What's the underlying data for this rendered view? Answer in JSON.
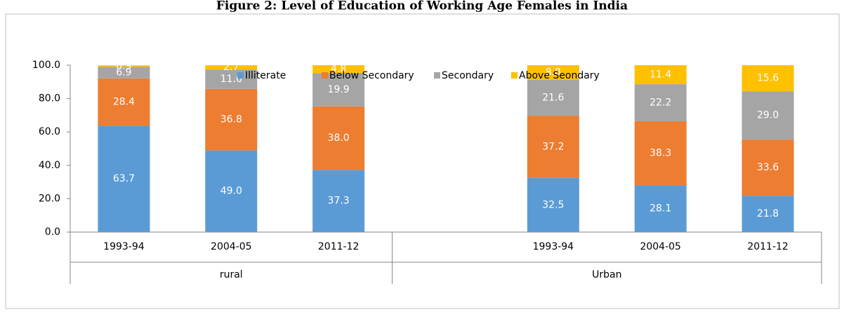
{
  "chart_data": {
    "type": "stacked-bar",
    "title": "Figure 2: Level of Education of Working Age Females in India",
    "categories": [
      "1993-94",
      "2004-05",
      "2011-12",
      null,
      "1993-94",
      "2004-05",
      "2011-12"
    ],
    "groups": [
      "rural",
      "Urban"
    ],
    "series": [
      {
        "name": "Illiterate",
        "color": "#5b9bd5",
        "values": [
          63.7,
          49.0,
          37.3,
          null,
          32.5,
          28.1,
          21.8
        ],
        "value_labels": [
          "63.7",
          "49.0",
          "37.3",
          null,
          "32.5",
          "28.1",
          "21.8"
        ]
      },
      {
        "name": "Below Secondary",
        "color": "#ed7d31",
        "values": [
          28.4,
          36.8,
          38.0,
          null,
          37.2,
          38.3,
          33.6
        ],
        "value_labels": [
          "28.4",
          "36.8",
          "38.0",
          null,
          "37.2",
          "38.3",
          "33.6"
        ]
      },
      {
        "name": "Secondary",
        "color": "#a5a5a5",
        "values": [
          6.9,
          11.6,
          19.9,
          null,
          21.6,
          22.2,
          29.0
        ],
        "value_labels": [
          "6.9",
          "11.6",
          "19.9",
          null,
          "21.6",
          "22.2",
          "29.0"
        ]
      },
      {
        "name": "Above Seondary",
        "color": "#ffc000",
        "values": [
          0.9,
          2.7,
          4.8,
          null,
          8.8,
          11.4,
          15.6
        ],
        "value_labels": [
          "0.9",
          "2.7",
          "4.8",
          null,
          "8.8",
          "11.4",
          "15.6"
        ]
      }
    ],
    "ylim": [
      0,
      100
    ],
    "yticks": [
      {
        "value": 0,
        "label": "0.0"
      },
      {
        "value": 20,
        "label": "20.0"
      },
      {
        "value": 40,
        "label": "40.0"
      },
      {
        "value": 60,
        "label": "60.0"
      },
      {
        "value": 80,
        "label": "80.0"
      },
      {
        "value": 100,
        "label": "100.0"
      }
    ],
    "legend": "top"
  }
}
